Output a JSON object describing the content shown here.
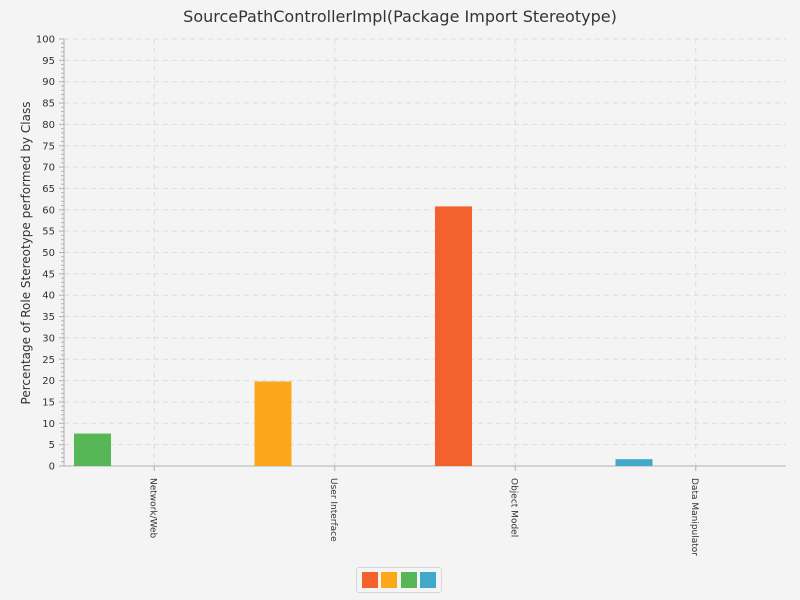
{
  "chart_data": {
    "type": "bar",
    "title": "SourcePathControllerImpl(Package Import Stereotype)",
    "xlabel": "",
    "ylabel": "Percentage of Role Stereotype performed by Class",
    "categories": [
      "Network/Web",
      "User Interface",
      "Object Model",
      "Data Manipulator"
    ],
    "series": [
      {
        "values": [
          0,
          0,
          60.8,
          0
        ],
        "color": "#f3622d"
      },
      {
        "values": [
          0,
          19.8,
          0,
          0
        ],
        "color": "#fba71b"
      },
      {
        "values": [
          7.6,
          0,
          0,
          0
        ],
        "color": "#57b757"
      },
      {
        "values": [
          0,
          0,
          0,
          1.6
        ],
        "color": "#41a9c9"
      }
    ],
    "ylim": [
      0,
      100
    ],
    "y_major_step": 5,
    "y_minor_step": 1,
    "grid": true,
    "legend": "bottom-center"
  }
}
